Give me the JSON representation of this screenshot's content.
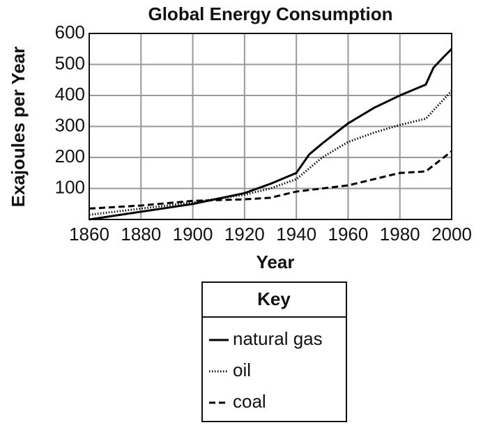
{
  "chart_data": {
    "type": "line",
    "title": "Global Energy Consumption",
    "x_label": "Year",
    "y_label": "Exajoules per Year",
    "xlim": [
      1860,
      2000
    ],
    "xticks": [
      1860,
      1880,
      1900,
      1920,
      1940,
      1960,
      1980,
      2000
    ],
    "ylim": [
      0,
      600
    ],
    "yticks": [
      100,
      200,
      300,
      400,
      500,
      600
    ],
    "grid": true,
    "legend_title": "Key",
    "series": [
      {
        "name": "natural gas",
        "color": "#000000",
        "dash": "solid",
        "x": [
          1860,
          1880,
          1900,
          1920,
          1930,
          1940,
          1945,
          1950,
          1960,
          1970,
          1980,
          1990,
          1993,
          1997,
          2000
        ],
        "values": [
          0,
          25,
          50,
          85,
          115,
          150,
          210,
          245,
          310,
          360,
          400,
          435,
          490,
          525,
          550
        ]
      },
      {
        "name": "oil",
        "color": "#000000",
        "dash": "dotted",
        "x": [
          1860,
          1880,
          1900,
          1920,
          1930,
          1940,
          1950,
          1960,
          1970,
          1980,
          1990,
          2000
        ],
        "values": [
          15,
          35,
          55,
          80,
          100,
          130,
          200,
          250,
          280,
          305,
          325,
          415
        ]
      },
      {
        "name": "coal",
        "color": "#000000",
        "dash": "dashed",
        "x": [
          1860,
          1880,
          1900,
          1920,
          1930,
          1940,
          1950,
          1960,
          1970,
          1980,
          1990,
          2000
        ],
        "values": [
          35,
          45,
          60,
          65,
          70,
          90,
          100,
          110,
          130,
          150,
          155,
          220
        ]
      }
    ]
  }
}
